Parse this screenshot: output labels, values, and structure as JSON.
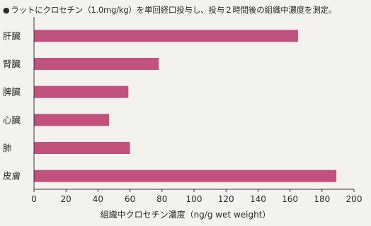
{
  "header": {
    "bullet": "●",
    "title": "ラットにクロセチン（1.0mg/kg）を単回経口投与し、投与２時間後の組織中濃度を測定。"
  },
  "chart_data": {
    "type": "bar",
    "orientation": "horizontal",
    "categories": [
      "肝臓",
      "腎臓",
      "脾臓",
      "心臓",
      "肺",
      "皮膚"
    ],
    "values": [
      165,
      78,
      59,
      47,
      60,
      189
    ],
    "xlabel": "組織中クロセチン濃度（ng/g wet weight）",
    "ylabel": "",
    "xlim": [
      0,
      200
    ],
    "xticks": [
      0,
      20,
      40,
      60,
      80,
      100,
      120,
      140,
      160,
      180,
      200
    ],
    "grid": false,
    "colors": {
      "bar": "#c1517d",
      "axis": "#333333"
    }
  }
}
